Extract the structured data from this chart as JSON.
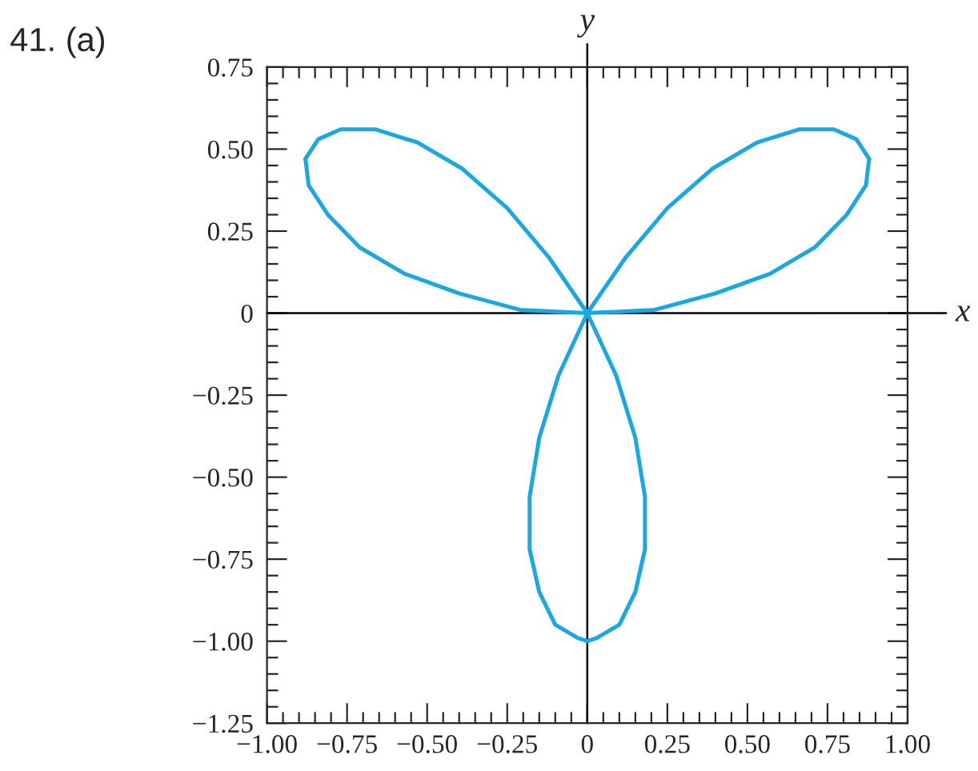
{
  "chart_data": {
    "type": "line",
    "title": "41. (a)",
    "series": [
      {
        "color": "#1ba8e2",
        "x": [
          -0.88,
          -0.87,
          -0.81,
          -0.71,
          -0.57,
          -0.4,
          -0.21,
          0,
          0.12,
          0.25,
          0.39,
          0.53,
          0.66,
          0.77,
          0.84,
          0.88
        ],
        "values": [
          0.47,
          0.39,
          0.3,
          0.2,
          0.12,
          0.06,
          0.01,
          0,
          0.17,
          0.32,
          0.44,
          0.52,
          0.56,
          0.56,
          0.53,
          0.47
        ]
      },
      {
        "color": "#1ba8e2",
        "x": [
          -0.88,
          -0.84,
          -0.77,
          -0.66,
          -0.53,
          -0.39,
          -0.25,
          -0.12,
          0,
          -0.09,
          -0.15,
          -0.18,
          -0.18,
          -0.15,
          -0.1,
          -0.03,
          0
        ],
        "values": [
          0.47,
          0.53,
          0.56,
          0.56,
          0.52,
          0.44,
          0.32,
          0.17,
          0,
          -0.19,
          -0.38,
          -0.56,
          -0.72,
          -0.85,
          -0.95,
          -0.99,
          -1.0
        ]
      },
      {
        "color": "#1ba8e2",
        "x": [
          0,
          0.03,
          0.1,
          0.15,
          0.18,
          0.18,
          0.15,
          0.09,
          0,
          0.21,
          0.4,
          0.57,
          0.71,
          0.81,
          0.87,
          0.88
        ],
        "values": [
          -1.0,
          -0.99,
          -0.95,
          -0.85,
          -0.72,
          -0.56,
          -0.38,
          -0.19,
          0,
          0.01,
          0.06,
          0.12,
          0.2,
          0.3,
          0.39,
          0.47
        ]
      }
    ],
    "xlim": [
      -1.0,
      1.0
    ],
    "ylim": [
      -1.25,
      0.75
    ],
    "xticks": [
      {
        "value": -1.0,
        "label": "−1.00"
      },
      {
        "value": -0.95,
        "label": null
      },
      {
        "value": -0.9,
        "label": null
      },
      {
        "value": -0.85,
        "label": null
      },
      {
        "value": -0.8,
        "label": null
      },
      {
        "value": -0.75,
        "label": "−0.75"
      },
      {
        "value": -0.7,
        "label": null
      },
      {
        "value": -0.65,
        "label": null
      },
      {
        "value": -0.6,
        "label": null
      },
      {
        "value": -0.55,
        "label": null
      },
      {
        "value": -0.5,
        "label": "−0.50"
      },
      {
        "value": -0.45,
        "label": null
      },
      {
        "value": -0.4,
        "label": null
      },
      {
        "value": -0.35,
        "label": null
      },
      {
        "value": -0.3,
        "label": null
      },
      {
        "value": -0.25,
        "label": "−0.25"
      },
      {
        "value": -0.2,
        "label": null
      },
      {
        "value": -0.15,
        "label": null
      },
      {
        "value": -0.1,
        "label": null
      },
      {
        "value": -0.05,
        "label": null
      },
      0,
      {
        "value": 0.05,
        "label": null
      },
      {
        "value": 0.1,
        "label": null
      },
      {
        "value": 0.15,
        "label": null
      },
      {
        "value": 0.2,
        "label": null
      },
      {
        "value": 0.25,
        "label": "0.25"
      },
      {
        "value": 0.3,
        "label": null
      },
      {
        "value": 0.35,
        "label": null
      },
      {
        "value": 0.4,
        "label": null
      },
      {
        "value": 0.45,
        "label": null
      },
      {
        "value": 0.5,
        "label": "0.50"
      },
      {
        "value": 0.55,
        "label": null
      },
      {
        "value": 0.6,
        "label": null
      },
      {
        "value": 0.65,
        "label": null
      },
      {
        "value": 0.7,
        "label": null
      },
      {
        "value": 0.75,
        "label": "0.75"
      },
      {
        "value": 0.8,
        "label": null
      },
      {
        "value": 0.85,
        "label": null
      },
      {
        "value": 0.9,
        "label": null
      },
      {
        "value": 0.95,
        "label": null
      },
      {
        "value": 1.0,
        "label": "1.00"
      }
    ],
    "yticks": [
      {
        "value": -1.25,
        "label": "−1.25"
      },
      {
        "value": -1.2,
        "label": null
      },
      {
        "value": -1.15,
        "label": null
      },
      {
        "value": -1.1,
        "label": null
      },
      {
        "value": -1.05,
        "label": null
      },
      {
        "value": -1.0,
        "label": "−1.00"
      },
      {
        "value": -0.95,
        "label": null
      },
      {
        "value": -0.9,
        "label": null
      },
      {
        "value": -0.85,
        "label": null
      },
      {
        "value": -0.8,
        "label": null
      },
      {
        "value": -0.75,
        "label": "−0.75"
      },
      {
        "value": -0.7,
        "label": null
      },
      {
        "value": -0.65,
        "label": null
      },
      {
        "value": -0.6,
        "label": null
      },
      {
        "value": -0.55,
        "label": null
      },
      {
        "value": -0.5,
        "label": "−0.50"
      },
      {
        "value": -0.45,
        "label": null
      },
      {
        "value": -0.4,
        "label": null
      },
      {
        "value": -0.35,
        "label": null
      },
      {
        "value": -0.3,
        "label": null
      },
      {
        "value": -0.25,
        "label": "−0.25"
      },
      {
        "value": -0.2,
        "label": null
      },
      {
        "value": -0.15,
        "label": null
      },
      {
        "value": -0.1,
        "label": null
      },
      {
        "value": -0.05,
        "label": null
      },
      0,
      {
        "value": 0.05,
        "label": null
      },
      {
        "value": 0.1,
        "label": null
      },
      {
        "value": 0.15,
        "label": null
      },
      {
        "value": 0.2,
        "label": null
      },
      {
        "value": 0.25,
        "label": "0.25"
      },
      {
        "value": 0.3,
        "label": null
      },
      {
        "value": 0.35,
        "label": null
      },
      {
        "value": 0.4,
        "label": null
      },
      {
        "value": 0.45,
        "label": null
      },
      {
        "value": 0.5,
        "label": "0.50"
      },
      {
        "value": 0.55,
        "label": null
      },
      {
        "value": 0.6,
        "label": null
      },
      {
        "value": 0.65,
        "label": null
      },
      {
        "value": 0.7,
        "label": null
      },
      {
        "value": 0.75,
        "label": "0.75"
      }
    ],
    "ref_lines": [
      {
        "axis": "y",
        "value": 0,
        "label": "x",
        "color": "#000000"
      },
      {
        "axis": "x",
        "value": 0,
        "label": "y",
        "color": "#000000"
      }
    ],
    "grid": false,
    "legend": false,
    "marker": "none",
    "line_style": "solid"
  }
}
